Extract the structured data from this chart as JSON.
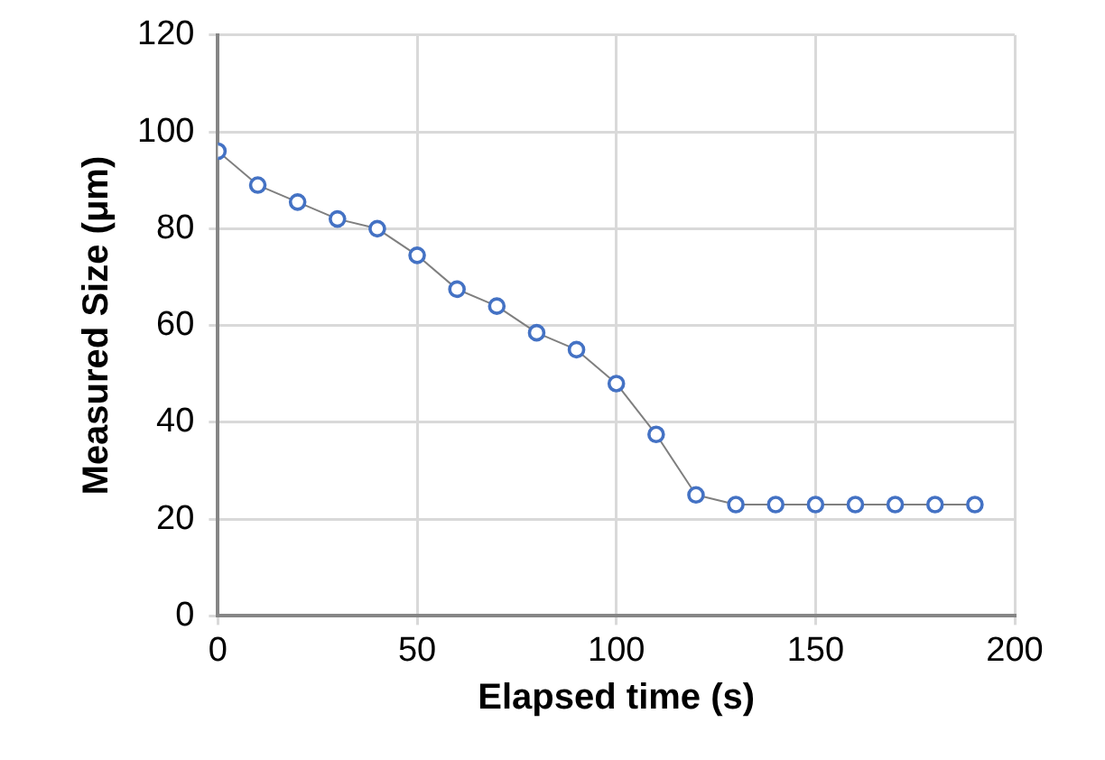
{
  "chart_data": {
    "type": "line",
    "xlabel": "Elapsed time (s)",
    "ylabel": "Measured Size (μm)",
    "x": [
      0,
      10,
      20,
      30,
      40,
      50,
      60,
      70,
      80,
      90,
      100,
      110,
      120,
      130,
      140,
      150,
      160,
      170,
      180,
      190
    ],
    "series": [
      {
        "color": "#4472c4",
        "values": [
          96,
          89,
          85.5,
          82,
          80,
          74.5,
          67.5,
          64,
          58.5,
          55,
          48,
          37.5,
          25,
          23,
          23,
          23,
          23,
          23,
          23,
          23
        ]
      }
    ],
    "xlim": [
      0,
      200
    ],
    "xticks": [
      0,
      50,
      100,
      150,
      200
    ],
    "ylim": [
      0,
      120
    ],
    "yticks": [
      0,
      20,
      40,
      60,
      80,
      100,
      120
    ],
    "grid": true,
    "legend": false,
    "marker": "circle",
    "line_style": "solid"
  }
}
